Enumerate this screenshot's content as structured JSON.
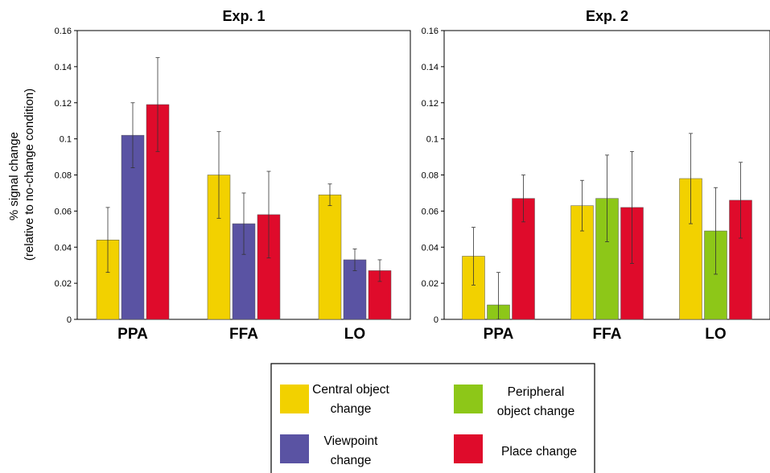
{
  "colors": {
    "central": "#f2d100",
    "viewpoint": "#5a53a3",
    "place": "#df0b2b",
    "peripheral": "#8dc718"
  },
  "figure": {
    "ylabel_line1": "% signal change",
    "ylabel_line2": "(relative to no-change condition)"
  },
  "legend": {
    "items": [
      {
        "key": "central",
        "line1": "Central object",
        "line2": "change",
        "color": "#f2d100"
      },
      {
        "key": "peripheral",
        "line1": "Peripheral",
        "line2": "object change",
        "color": "#8dc718"
      },
      {
        "key": "viewpoint",
        "line1": "Viewpoint",
        "line2": "change",
        "color": "#5a53a3"
      },
      {
        "key": "place",
        "line1": "Place change",
        "line2": "",
        "color": "#df0b2b"
      }
    ]
  },
  "chart_data": [
    {
      "type": "bar",
      "title": "Exp. 1",
      "categories": [
        "PPA",
        "FFA",
        "LO"
      ],
      "ylim": [
        0,
        0.16
      ],
      "yticks": [
        "0",
        "0.02",
        "0.04",
        "0.06",
        "0.08",
        "0.1",
        "0.12",
        "0.14",
        "0.16"
      ],
      "grid": false,
      "series": [
        {
          "name": "Central object change",
          "key": "central",
          "values": [
            0.044,
            0.08,
            0.069
          ],
          "errors": [
            0.018,
            0.024,
            0.006
          ]
        },
        {
          "name": "Viewpoint change",
          "key": "viewpoint",
          "values": [
            0.102,
            0.053,
            0.033
          ],
          "errors": [
            0.018,
            0.017,
            0.006
          ]
        },
        {
          "name": "Place change",
          "key": "place",
          "values": [
            0.119,
            0.058,
            0.027
          ],
          "errors": [
            0.026,
            0.024,
            0.006
          ]
        }
      ]
    },
    {
      "type": "bar",
      "title": "Exp. 2",
      "categories": [
        "PPA",
        "FFA",
        "LO"
      ],
      "ylim": [
        0,
        0.16
      ],
      "yticks": [
        "0",
        "0.02",
        "0.04",
        "0.06",
        "0.08",
        "0.1",
        "0.12",
        "0.14",
        "0.16"
      ],
      "grid": false,
      "series": [
        {
          "name": "Central object change",
          "key": "central",
          "values": [
            0.035,
            0.063,
            0.078
          ],
          "errors": [
            0.016,
            0.014,
            0.025
          ]
        },
        {
          "name": "Peripheral object change",
          "key": "peripheral",
          "values": [
            0.008,
            0.067,
            0.049
          ],
          "errors": [
            0.018,
            0.024,
            0.024
          ]
        },
        {
          "name": "Place change",
          "key": "place",
          "values": [
            0.067,
            0.062,
            0.066
          ],
          "errors": [
            0.013,
            0.031,
            0.021
          ]
        }
      ]
    }
  ]
}
